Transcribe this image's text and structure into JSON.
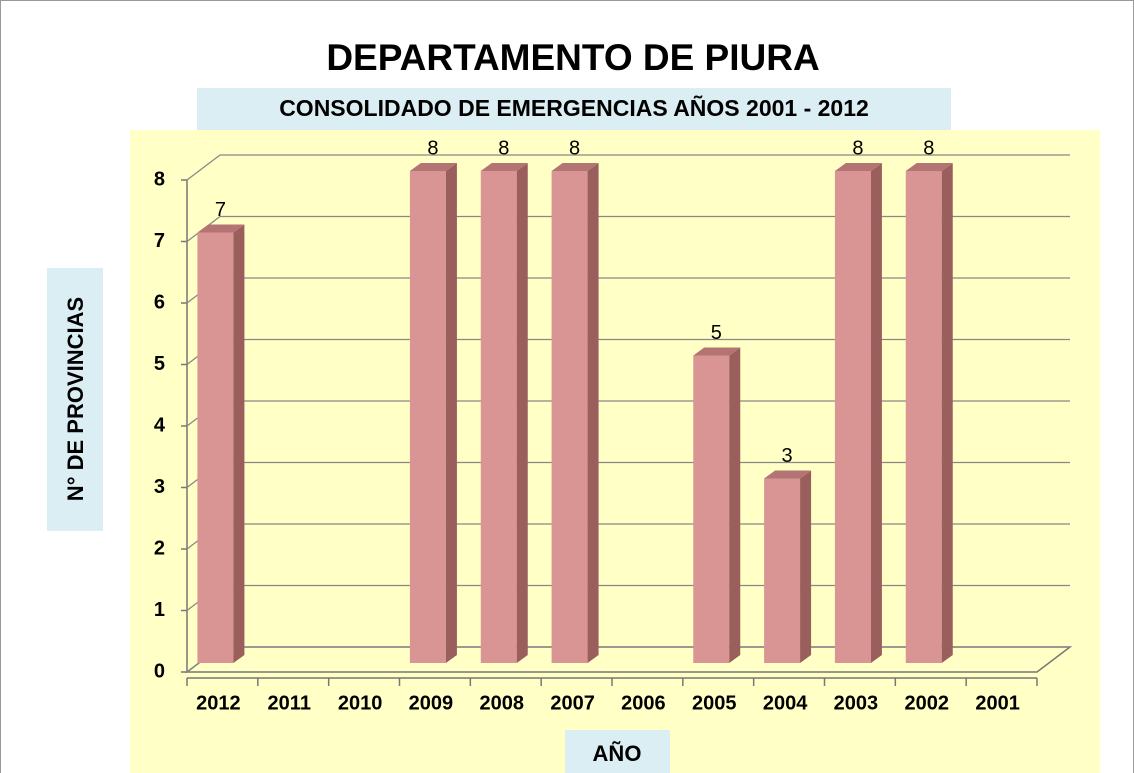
{
  "chart_data": {
    "type": "bar3d",
    "title": "DEPARTAMENTO DE PIURA",
    "subtitle": "CONSOLIDADO DE EMERGENCIAS AÑOS  2001  - 2012",
    "x_label": "AÑO",
    "y_label": "N° DE PROVINCIAS",
    "categories": [
      "2012",
      "2011",
      "2010",
      "2009",
      "2008",
      "2007",
      "2006",
      "2005",
      "2004",
      "2003",
      "2002",
      "2001"
    ],
    "values": [
      7,
      null,
      null,
      8,
      8,
      8,
      null,
      5,
      3,
      8,
      8,
      null
    ],
    "color": "#d99594",
    "ylim": [
      0,
      8
    ],
    "yticks": [
      0,
      1,
      2,
      3,
      4,
      5,
      6,
      7,
      8
    ],
    "grid": true
  }
}
